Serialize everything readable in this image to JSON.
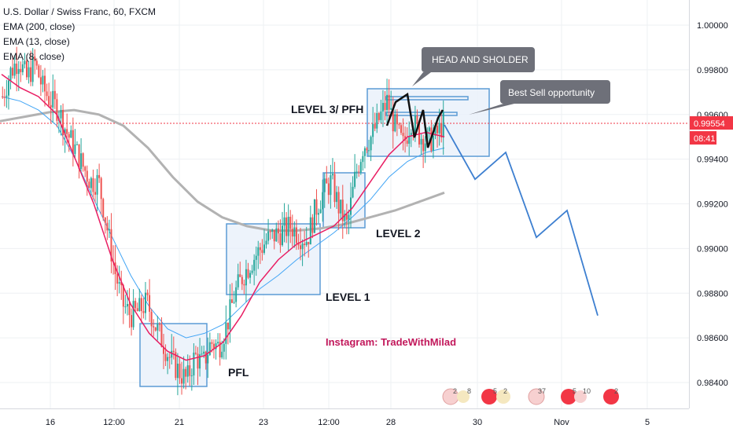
{
  "legend": {
    "symbol": "U.S. Dollar / Swiss Franc, 60, FXCM",
    "ema200": "EMA (200, close)",
    "ema13": "EMA (13, close)",
    "ema8": "EMA (8, close)"
  },
  "price_axis": {
    "ticks": [
      "1.00000",
      "0.99800",
      "0.99600",
      "0.99400",
      "0.99200",
      "0.99000",
      "0.98800",
      "0.98600",
      "0.98400"
    ],
    "current_price": "0.99554",
    "countdown": "08:41"
  },
  "time_axis": {
    "ticks": [
      "16",
      "12:00",
      "21",
      "23",
      "12:00",
      "28",
      "30",
      "Nov",
      "5"
    ]
  },
  "annotations": {
    "head_shoulder": "HEAD AND SHOLDER",
    "best_sell": "Best Sell opportunity",
    "level3": "LEVEL 3/ PFH",
    "level2": "LEVEL 2",
    "level1": "LEVEL 1",
    "pfl": "PFL",
    "instagram": "Instagram: TradeWithMilad"
  },
  "colors": {
    "up_candle": "#26a69a",
    "down_candle": "#ef5350",
    "ema8": "#e91e63",
    "ema13": "#42a5f5",
    "ema200": "#b2b2b2",
    "projection": "#3d7fd0",
    "box_stroke": "#5b9bd5",
    "box_fill": "#e8f0fa",
    "price_label": "#f23645",
    "callout": "#6e7079",
    "instagram": "#c2185b"
  },
  "chart_data": {
    "type": "candlestick",
    "title": "U.S. Dollar / Swiss Franc, 60, FXCM",
    "ylim": [
      0.9832,
      1.0008
    ],
    "yticks": [
      0.984,
      0.986,
      0.988,
      0.99,
      0.992,
      0.994,
      0.996,
      0.998,
      1.0
    ],
    "current_price": 0.99554,
    "ohlc_path": [
      0.9968,
      0.9979,
      0.9985,
      0.9976,
      0.9983,
      0.9972,
      0.9966,
      0.9962,
      0.9952,
      0.9945,
      0.9937,
      0.993,
      0.993,
      0.991,
      0.989,
      0.9875,
      0.987,
      0.9872,
      0.9876,
      0.9866,
      0.9858,
      0.985,
      0.9845,
      0.9841,
      0.9852,
      0.9848,
      0.9858,
      0.9856,
      0.9866,
      0.988,
      0.9888,
      0.9894,
      0.9899,
      0.9904,
      0.9906,
      0.9908,
      0.991,
      0.9906,
      0.9904,
      0.9917,
      0.9925,
      0.993,
      0.9918,
      0.991,
      0.9932,
      0.9946,
      0.995,
      0.9958,
      0.9966,
      0.9954,
      0.9946,
      0.9958,
      0.9951,
      0.9948,
      0.995,
      0.9956
    ],
    "projection": [
      [
        0.99554,
        0
      ],
      [
        0.9931,
        1
      ],
      [
        0.9943,
        2
      ],
      [
        0.9905,
        3
      ],
      [
        0.9917,
        4
      ],
      [
        0.987,
        5
      ]
    ],
    "ema8": [
      0.9978,
      0.9972,
      0.9968,
      0.996,
      0.994,
      0.992,
      0.9895,
      0.9875,
      0.9862,
      0.9854,
      0.985,
      0.9852,
      0.9858,
      0.987,
      0.9885,
      0.9895,
      0.9902,
      0.9906,
      0.991,
      0.9918,
      0.993,
      0.9942,
      0.995,
      0.9952,
      0.995
    ],
    "ema13": [
      0.9968,
      0.9966,
      0.9962,
      0.9955,
      0.994,
      0.9922,
      0.9905,
      0.9888,
      0.9874,
      0.9864,
      0.986,
      0.9862,
      0.9866,
      0.9874,
      0.9882,
      0.9888,
      0.9895,
      0.9901,
      0.9907,
      0.9914,
      0.9922,
      0.9932,
      0.9939,
      0.9943,
      0.9945
    ],
    "ema200": [
      0.9957,
      0.9959,
      0.9961,
      0.9962,
      0.996,
      0.9955,
      0.9945,
      0.9932,
      0.9921,
      0.9914,
      0.991,
      0.9908,
      0.9908,
      0.9909,
      0.9911,
      0.9914,
      0.9917,
      0.9921,
      0.9925
    ]
  }
}
